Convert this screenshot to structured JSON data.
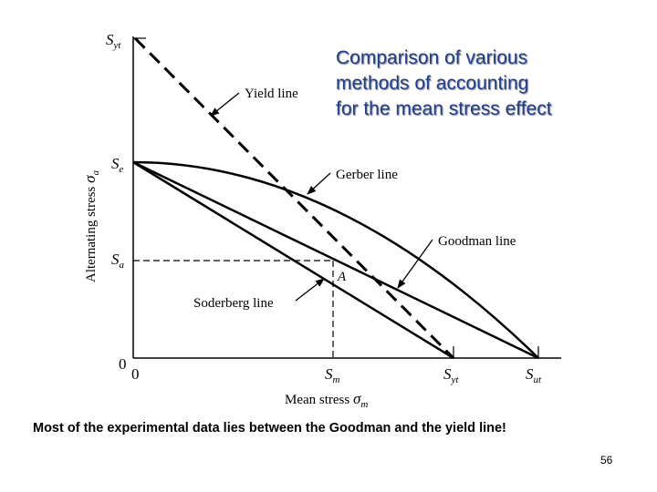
{
  "title_lines": [
    "Comparison of various",
    "methods of accounting",
    "for the mean stress effect"
  ],
  "caption": "Most of the experimental data lies between the Goodman and the yield line!",
  "page_number": "56",
  "axes": {
    "x_label_main": "Mean stress ",
    "x_label_sym": "σ",
    "x_label_sub": "m",
    "y_label_main": "Alternating stress ",
    "y_label_sym": "σ",
    "y_label_sub": "a"
  },
  "y_ticks": [
    {
      "main": "S",
      "sub": "yt"
    },
    {
      "main": "S",
      "sub": "e"
    },
    {
      "main": "S",
      "sub": "a"
    },
    {
      "main": "0",
      "sub": ""
    }
  ],
  "x_ticks": [
    {
      "main": "0",
      "sub": ""
    },
    {
      "main": "S",
      "sub": "m"
    },
    {
      "main": "S",
      "sub": "yt"
    },
    {
      "main": "S",
      "sub": "ut"
    }
  ],
  "callouts": {
    "yield": "Yield line",
    "gerber": "Gerber line",
    "goodman": "Goodman line",
    "soderberg": "Soderberg line",
    "point": "A"
  },
  "colors": {
    "title": "#1f3f8c"
  }
}
